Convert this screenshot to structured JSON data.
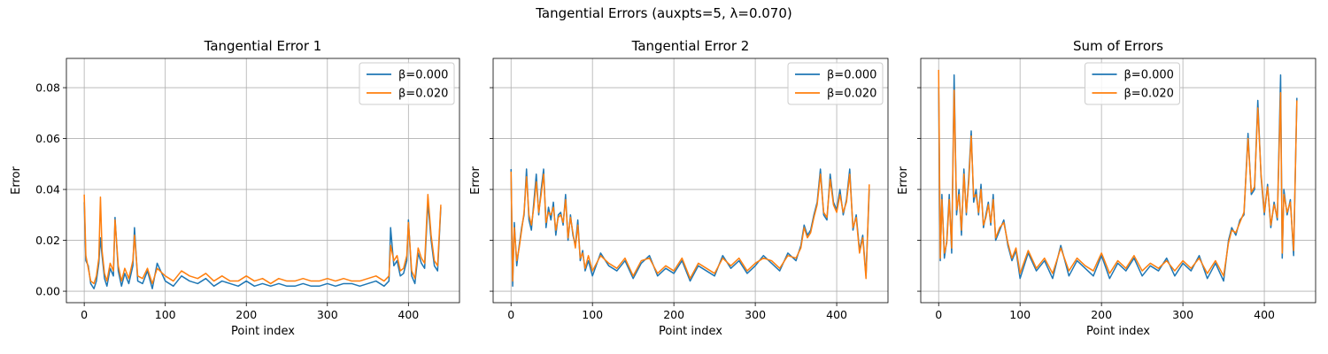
{
  "figure": {
    "suptitle": "Tangential Errors (auxpts=5, λ=0.070)"
  },
  "colors": {
    "beta0": "#1f77b4",
    "beta1": "#ff7f0e",
    "grid": "#b0b0b0"
  },
  "chart_data": [
    {
      "type": "line",
      "title": "Tangential Error 1",
      "xlabel": "Point index",
      "ylabel": "Error",
      "xlim": [
        -22,
        463
      ],
      "ylim": [
        -0.0045,
        0.0915
      ],
      "xticks": [
        0,
        100,
        200,
        300,
        400
      ],
      "yticks": [
        0.0,
        0.02,
        0.04,
        0.06,
        0.08
      ],
      "ytick_labels": [
        "0.00",
        "0.02",
        "0.04",
        "0.06",
        "0.08"
      ],
      "grid": true,
      "legend_position": "upper right",
      "series": [
        {
          "name": "β=0.000",
          "color": "#1f77b4",
          "x": [
            0,
            2,
            5,
            8,
            12,
            15,
            18,
            20,
            22,
            25,
            28,
            32,
            36,
            38,
            42,
            46,
            50,
            55,
            60,
            62,
            66,
            72,
            78,
            84,
            90,
            100,
            110,
            120,
            130,
            140,
            150,
            160,
            170,
            180,
            190,
            200,
            210,
            220,
            230,
            240,
            250,
            260,
            270,
            280,
            290,
            300,
            310,
            320,
            330,
            340,
            350,
            360,
            370,
            376,
            378,
            382,
            386,
            390,
            394,
            398,
            400,
            404,
            408,
            412,
            416,
            420,
            424,
            428,
            432,
            436,
            440
          ],
          "y": [
            0.035,
            0.012,
            0.01,
            0.003,
            0.001,
            0.004,
            0.011,
            0.021,
            0.014,
            0.005,
            0.002,
            0.009,
            0.006,
            0.029,
            0.008,
            0.002,
            0.007,
            0.003,
            0.01,
            0.025,
            0.004,
            0.003,
            0.008,
            0.001,
            0.011,
            0.004,
            0.002,
            0.006,
            0.004,
            0.003,
            0.005,
            0.002,
            0.004,
            0.003,
            0.002,
            0.004,
            0.002,
            0.003,
            0.002,
            0.003,
            0.002,
            0.002,
            0.003,
            0.002,
            0.002,
            0.003,
            0.002,
            0.003,
            0.003,
            0.002,
            0.003,
            0.004,
            0.002,
            0.004,
            0.025,
            0.01,
            0.012,
            0.006,
            0.007,
            0.012,
            0.028,
            0.006,
            0.003,
            0.015,
            0.011,
            0.009,
            0.035,
            0.02,
            0.01,
            0.008,
            0.033
          ]
        },
        {
          "name": "β=0.020",
          "color": "#ff7f0e",
          "x": [
            0,
            2,
            5,
            8,
            12,
            15,
            18,
            20,
            22,
            25,
            28,
            32,
            36,
            38,
            42,
            46,
            50,
            55,
            60,
            62,
            66,
            72,
            78,
            84,
            90,
            100,
            110,
            120,
            130,
            140,
            150,
            160,
            170,
            180,
            190,
            200,
            210,
            220,
            230,
            240,
            250,
            260,
            270,
            280,
            290,
            300,
            310,
            320,
            330,
            340,
            350,
            360,
            370,
            376,
            378,
            382,
            386,
            390,
            394,
            398,
            400,
            404,
            408,
            412,
            416,
            420,
            424,
            428,
            432,
            436,
            440
          ],
          "y": [
            0.038,
            0.014,
            0.009,
            0.004,
            0.003,
            0.006,
            0.013,
            0.037,
            0.016,
            0.007,
            0.004,
            0.011,
            0.008,
            0.028,
            0.01,
            0.004,
            0.009,
            0.005,
            0.012,
            0.022,
            0.006,
            0.005,
            0.009,
            0.003,
            0.009,
            0.006,
            0.004,
            0.008,
            0.006,
            0.005,
            0.007,
            0.004,
            0.006,
            0.004,
            0.004,
            0.006,
            0.004,
            0.005,
            0.003,
            0.005,
            0.004,
            0.004,
            0.005,
            0.004,
            0.004,
            0.005,
            0.004,
            0.005,
            0.004,
            0.004,
            0.005,
            0.006,
            0.004,
            0.006,
            0.018,
            0.012,
            0.014,
            0.008,
            0.009,
            0.014,
            0.027,
            0.008,
            0.005,
            0.017,
            0.013,
            0.011,
            0.038,
            0.022,
            0.012,
            0.01,
            0.034
          ]
        }
      ]
    },
    {
      "type": "line",
      "title": "Tangential Error 2",
      "xlabel": "Point index",
      "ylabel": "Error",
      "xlim": [
        -22,
        463
      ],
      "ylim": [
        -0.0045,
        0.0915
      ],
      "xticks": [
        0,
        100,
        200,
        300,
        400
      ],
      "yticks": [
        0.0,
        0.02,
        0.04,
        0.06,
        0.08
      ],
      "ytick_labels": [
        "",
        "",
        "",
        "",
        ""
      ],
      "grid": true,
      "legend_position": "upper right",
      "series": [
        {
          "name": "β=0.000",
          "color": "#1f77b4",
          "x": [
            0,
            2,
            4,
            7,
            10,
            13,
            16,
            19,
            22,
            25,
            28,
            31,
            34,
            37,
            40,
            43,
            46,
            49,
            52,
            55,
            58,
            61,
            64,
            67,
            70,
            73,
            76,
            79,
            82,
            85,
            88,
            91,
            95,
            100,
            110,
            120,
            130,
            140,
            150,
            160,
            170,
            180,
            190,
            200,
            210,
            220,
            230,
            240,
            250,
            260,
            270,
            280,
            290,
            300,
            310,
            320,
            330,
            340,
            350,
            356,
            360,
            364,
            368,
            372,
            376,
            380,
            384,
            388,
            392,
            396,
            400,
            404,
            408,
            412,
            416,
            420,
            424,
            428,
            432,
            436,
            440
          ],
          "y": [
            0.048,
            0.002,
            0.027,
            0.01,
            0.018,
            0.025,
            0.03,
            0.048,
            0.028,
            0.024,
            0.035,
            0.046,
            0.03,
            0.04,
            0.048,
            0.025,
            0.033,
            0.028,
            0.035,
            0.022,
            0.03,
            0.031,
            0.026,
            0.038,
            0.02,
            0.03,
            0.022,
            0.018,
            0.028,
            0.012,
            0.016,
            0.008,
            0.012,
            0.006,
            0.015,
            0.01,
            0.008,
            0.012,
            0.005,
            0.011,
            0.014,
            0.006,
            0.009,
            0.007,
            0.012,
            0.004,
            0.01,
            0.008,
            0.006,
            0.014,
            0.009,
            0.012,
            0.007,
            0.01,
            0.014,
            0.011,
            0.008,
            0.015,
            0.012,
            0.018,
            0.026,
            0.022,
            0.024,
            0.03,
            0.035,
            0.048,
            0.03,
            0.028,
            0.046,
            0.035,
            0.032,
            0.04,
            0.03,
            0.036,
            0.048,
            0.024,
            0.03,
            0.016,
            0.022,
            0.006,
            0.04
          ]
        },
        {
          "name": "β=0.020",
          "color": "#ff7f0e",
          "x": [
            0,
            2,
            4,
            7,
            10,
            13,
            16,
            19,
            22,
            25,
            28,
            31,
            34,
            37,
            40,
            43,
            46,
            49,
            52,
            55,
            58,
            61,
            64,
            67,
            70,
            73,
            76,
            79,
            82,
            85,
            88,
            91,
            95,
            100,
            110,
            120,
            130,
            140,
            150,
            160,
            170,
            180,
            190,
            200,
            210,
            220,
            230,
            240,
            250,
            260,
            270,
            280,
            290,
            300,
            310,
            320,
            330,
            340,
            350,
            356,
            360,
            364,
            368,
            372,
            376,
            380,
            384,
            388,
            392,
            396,
            400,
            404,
            408,
            412,
            416,
            420,
            424,
            428,
            432,
            436,
            440
          ],
          "y": [
            0.047,
            0.004,
            0.025,
            0.012,
            0.017,
            0.024,
            0.031,
            0.045,
            0.03,
            0.026,
            0.033,
            0.043,
            0.031,
            0.038,
            0.046,
            0.027,
            0.031,
            0.03,
            0.033,
            0.024,
            0.029,
            0.03,
            0.027,
            0.036,
            0.021,
            0.029,
            0.023,
            0.017,
            0.026,
            0.013,
            0.015,
            0.009,
            0.014,
            0.008,
            0.014,
            0.011,
            0.009,
            0.013,
            0.006,
            0.012,
            0.013,
            0.007,
            0.01,
            0.008,
            0.013,
            0.005,
            0.011,
            0.009,
            0.007,
            0.013,
            0.01,
            0.013,
            0.008,
            0.011,
            0.013,
            0.012,
            0.009,
            0.014,
            0.013,
            0.017,
            0.025,
            0.021,
            0.023,
            0.029,
            0.034,
            0.046,
            0.031,
            0.029,
            0.044,
            0.034,
            0.031,
            0.038,
            0.031,
            0.035,
            0.046,
            0.025,
            0.029,
            0.015,
            0.021,
            0.005,
            0.042
          ]
        }
      ]
    },
    {
      "type": "line",
      "title": "Sum of Errors",
      "xlabel": "Point index",
      "ylabel": "Error",
      "xlim": [
        -22,
        463
      ],
      "ylim": [
        -0.0045,
        0.0915
      ],
      "xticks": [
        0,
        100,
        200,
        300,
        400
      ],
      "yticks": [
        0.0,
        0.02,
        0.04,
        0.06,
        0.08
      ],
      "ytick_labels": [
        "",
        "",
        "",
        "",
        ""
      ],
      "grid": true,
      "legend_position": "upper center",
      "series": [
        {
          "name": "β=0.000",
          "color": "#1f77b4",
          "x": [
            0,
            2,
            4,
            7,
            10,
            13,
            16,
            19,
            22,
            25,
            28,
            31,
            34,
            37,
            40,
            43,
            46,
            49,
            52,
            55,
            58,
            61,
            64,
            67,
            70,
            75,
            80,
            85,
            90,
            95,
            100,
            110,
            120,
            130,
            140,
            150,
            160,
            170,
            180,
            190,
            200,
            210,
            220,
            230,
            240,
            250,
            260,
            270,
            280,
            290,
            300,
            310,
            320,
            330,
            340,
            350,
            356,
            360,
            365,
            370,
            375,
            380,
            384,
            388,
            392,
            396,
            400,
            404,
            408,
            412,
            416,
            420,
            422,
            424,
            428,
            432,
            436,
            440
          ],
          "y": [
            0.08,
            0.012,
            0.038,
            0.013,
            0.02,
            0.038,
            0.015,
            0.085,
            0.03,
            0.04,
            0.022,
            0.048,
            0.03,
            0.045,
            0.063,
            0.035,
            0.04,
            0.03,
            0.042,
            0.025,
            0.03,
            0.035,
            0.026,
            0.038,
            0.02,
            0.024,
            0.028,
            0.018,
            0.012,
            0.016,
            0.005,
            0.015,
            0.008,
            0.012,
            0.005,
            0.018,
            0.006,
            0.012,
            0.009,
            0.006,
            0.014,
            0.005,
            0.011,
            0.008,
            0.013,
            0.006,
            0.01,
            0.008,
            0.013,
            0.006,
            0.011,
            0.008,
            0.014,
            0.005,
            0.011,
            0.004,
            0.02,
            0.025,
            0.022,
            0.028,
            0.03,
            0.062,
            0.038,
            0.04,
            0.075,
            0.045,
            0.03,
            0.042,
            0.025,
            0.035,
            0.028,
            0.085,
            0.013,
            0.04,
            0.03,
            0.036,
            0.014,
            0.076
          ]
        },
        {
          "name": "β=0.020",
          "color": "#ff7f0e",
          "x": [
            0,
            2,
            4,
            7,
            10,
            13,
            16,
            19,
            22,
            25,
            28,
            31,
            34,
            37,
            40,
            43,
            46,
            49,
            52,
            55,
            58,
            61,
            64,
            67,
            70,
            75,
            80,
            85,
            90,
            95,
            100,
            110,
            120,
            130,
            140,
            150,
            160,
            170,
            180,
            190,
            200,
            210,
            220,
            230,
            240,
            250,
            260,
            270,
            280,
            290,
            300,
            310,
            320,
            330,
            340,
            350,
            356,
            360,
            365,
            370,
            375,
            380,
            384,
            388,
            392,
            396,
            400,
            404,
            408,
            412,
            416,
            420,
            422,
            424,
            428,
            432,
            436,
            440
          ],
          "y": [
            0.087,
            0.013,
            0.036,
            0.015,
            0.019,
            0.036,
            0.017,
            0.079,
            0.032,
            0.038,
            0.024,
            0.046,
            0.031,
            0.043,
            0.061,
            0.037,
            0.038,
            0.031,
            0.04,
            0.026,
            0.029,
            0.034,
            0.027,
            0.036,
            0.021,
            0.025,
            0.027,
            0.019,
            0.013,
            0.017,
            0.007,
            0.016,
            0.009,
            0.013,
            0.007,
            0.017,
            0.008,
            0.013,
            0.01,
            0.008,
            0.015,
            0.007,
            0.012,
            0.009,
            0.014,
            0.008,
            0.011,
            0.009,
            0.012,
            0.008,
            0.012,
            0.009,
            0.013,
            0.007,
            0.012,
            0.006,
            0.019,
            0.024,
            0.023,
            0.027,
            0.031,
            0.06,
            0.039,
            0.041,
            0.072,
            0.046,
            0.031,
            0.041,
            0.026,
            0.034,
            0.029,
            0.078,
            0.015,
            0.038,
            0.031,
            0.035,
            0.016,
            0.075
          ]
        }
      ]
    }
  ]
}
